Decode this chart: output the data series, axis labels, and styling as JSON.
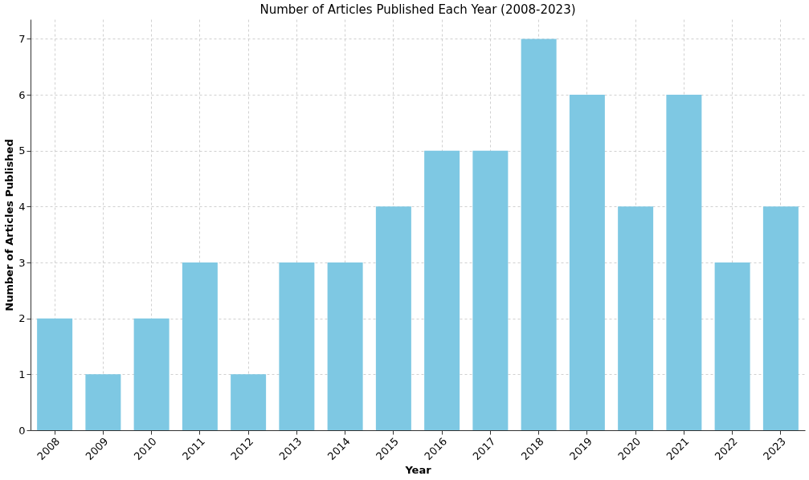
{
  "chart_data": {
    "type": "bar",
    "title": "Number of Articles Published Each Year (2008-2023)",
    "xlabel": "Year",
    "ylabel": "Number of Articles Published",
    "categories": [
      "2008",
      "2009",
      "2010",
      "2011",
      "2012",
      "2013",
      "2014",
      "2015",
      "2016",
      "2017",
      "2018",
      "2019",
      "2020",
      "2021",
      "2022",
      "2023"
    ],
    "values": [
      2,
      1,
      2,
      3,
      1,
      3,
      3,
      4,
      5,
      5,
      7,
      6,
      4,
      6,
      3,
      4
    ],
    "color": "#7ec8e3",
    "ylim": [
      0,
      7.35
    ],
    "yticks": [
      0,
      1,
      2,
      3,
      4,
      5,
      6,
      7
    ],
    "grid": true
  }
}
